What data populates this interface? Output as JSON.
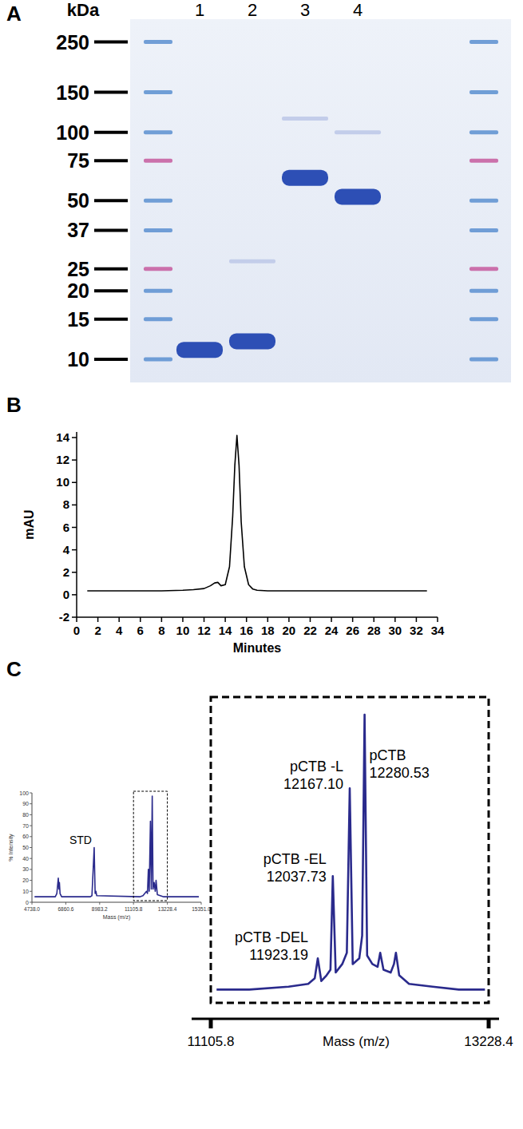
{
  "chart_data": [
    {
      "type": "gel",
      "title": "A",
      "y_label": "kDa",
      "categories": [
        "1",
        "2",
        "3",
        "4"
      ],
      "series": [
        {
          "values": [
            11,
            12,
            63,
            52
          ],
          "color": "#2d4fb5"
        },
        {
          "values": [
            null,
            27,
            115,
            100
          ],
          "color": "#c3cdea"
        }
      ],
      "ylim": [
        8.5,
        300
      ],
      "yticks": [
        10,
        15,
        20,
        25,
        37,
        50,
        75,
        100,
        150,
        250
      ],
      "log": "y"
    },
    {
      "type": "line",
      "title": "B",
      "x_label": "Minutes",
      "y_label": "mAU",
      "x": [
        1,
        2,
        4,
        6,
        8,
        10,
        11,
        12,
        12.6,
        13.0,
        13.3,
        13.6,
        14.0,
        14.4,
        14.7,
        14.9,
        15.1,
        15.3,
        15.5,
        15.8,
        16.2,
        16.6,
        17,
        18,
        20,
        24,
        28,
        33
      ],
      "values": [
        0.35,
        0.35,
        0.35,
        0.35,
        0.35,
        0.4,
        0.45,
        0.55,
        0.8,
        1.05,
        1.1,
        0.8,
        0.9,
        2.5,
        7,
        11.5,
        14.2,
        11.5,
        6.5,
        2.5,
        0.9,
        0.5,
        0.4,
        0.35,
        0.35,
        0.35,
        0.35,
        0.35
      ],
      "color": "#000000",
      "xlim": [
        0,
        34
      ],
      "xticks": [
        0,
        2,
        4,
        6,
        8,
        10,
        12,
        14,
        16,
        18,
        20,
        22,
        24,
        26,
        28,
        30,
        32,
        34
      ],
      "ylim": [
        -2,
        14.5
      ],
      "yticks": [
        -2,
        0,
        2,
        4,
        6,
        8,
        10,
        12,
        14
      ]
    },
    {
      "type": "line",
      "title": "C",
      "x_label": "Mass (m/z)",
      "y_label": "% Intensity",
      "x": [
        4900,
        6200,
        6300,
        6390,
        6430,
        6460,
        6500,
        6600,
        8400,
        8500,
        8640,
        8700,
        8750,
        8800,
        11500,
        11700,
        11923,
        11980,
        12037,
        12090,
        12167,
        12220,
        12280,
        12330,
        12400,
        12470,
        12520,
        12600,
        13000,
        15200
      ],
      "values": [
        5,
        5,
        8,
        22,
        12,
        18,
        8,
        5,
        5,
        6,
        50,
        8,
        10,
        6,
        5,
        6,
        10,
        8,
        30,
        10,
        74,
        12,
        97,
        12,
        18,
        10,
        20,
        7,
        5,
        5
      ],
      "color": "#2a2a8c",
      "xlim": [
        4738,
        15351
      ],
      "xticks": [
        {
          "value": 4738,
          "label": "4738.0"
        },
        6860.6,
        8983.2,
        11105.8,
        13228.4,
        {
          "value": 15351,
          "label": "15351.0"
        }
      ],
      "ylim": [
        0,
        100
      ],
      "yticks": [
        0,
        10,
        20,
        30,
        40,
        50,
        60,
        70,
        80,
        90,
        100
      ],
      "annotations": [
        {
          "text": "STD",
          "x": 8640
        }
      ]
    },
    {
      "type": "line",
      "x_label": "Mass (m/z)",
      "x": [
        11150,
        11400,
        11700,
        11850,
        11900,
        11923.19,
        11950,
        11990,
        12020,
        12037.73,
        12060,
        12110,
        12145,
        12167.1,
        12190,
        12240,
        12262,
        12280.53,
        12300,
        12340,
        12380,
        12400,
        12425,
        12480,
        12505,
        12520,
        12545,
        12620,
        12800,
        13000,
        13200
      ],
      "values": [
        3,
        3,
        4,
        5,
        7,
        14,
        6,
        8,
        10,
        43,
        9,
        12,
        16,
        74,
        12,
        14,
        22,
        100,
        15,
        12,
        11,
        16,
        10,
        9,
        12,
        16,
        8,
        5,
        4,
        3,
        3
      ],
      "color": "#2a2a8c",
      "xlim": [
        11105.8,
        13228.4
      ],
      "xticks": [
        11105.8,
        13228.4
      ],
      "ylim": [
        0,
        100
      ],
      "tick_labels": "x",
      "annotations": [
        {
          "text": "pCTB",
          "x": 12280.53,
          "label": "12280.53"
        },
        {
          "text": "pCTB -L",
          "x": 12167.1,
          "label": "12167.10"
        },
        {
          "text": "pCTB -EL",
          "x": 12037.73,
          "label": "12037.73"
        },
        {
          "text": "pCTB -DEL",
          "x": 11923.19,
          "label": "11923.19"
        }
      ]
    }
  ]
}
